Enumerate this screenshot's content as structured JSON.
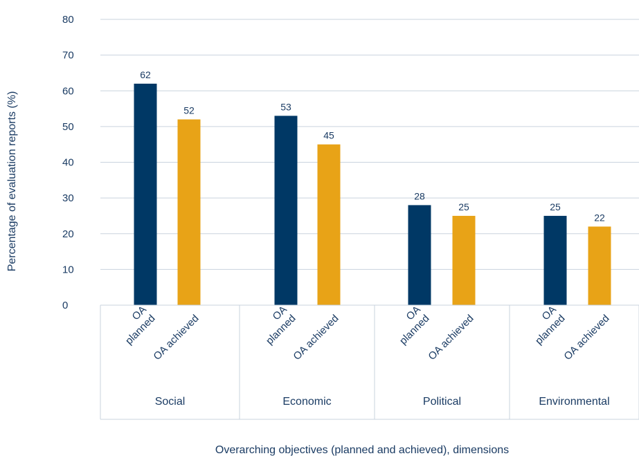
{
  "chart_data": {
    "type": "bar",
    "categories": [
      "Social",
      "Economic",
      "Political",
      "Environmental"
    ],
    "sub_labels": [
      [
        "OA",
        "planned"
      ],
      [
        "OA achieved"
      ]
    ],
    "series": [
      {
        "values": [
          62,
          53,
          28,
          25
        ],
        "color": "#003865"
      },
      {
        "values": [
          52,
          45,
          25,
          22
        ],
        "color": "#e8a317"
      }
    ],
    "ylabel": "Percentage of evaluation reports (%)",
    "xlabel": "Overarching objectives (planned and achieved), dimensions",
    "ylim": [
      0,
      80
    ],
    "yticks": [
      0,
      10,
      20,
      30,
      40,
      50,
      60,
      70,
      80
    ],
    "grid": true,
    "data_labels": true
  }
}
